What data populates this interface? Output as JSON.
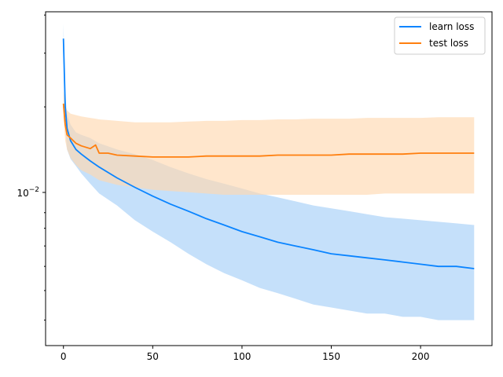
{
  "chart_data": {
    "type": "line",
    "title": "",
    "xlabel": "",
    "ylabel": "",
    "xlim": [
      -10,
      240
    ],
    "ylim": [
      0.0033,
      0.041
    ],
    "yscale": "log",
    "grid": false,
    "legend_position": "top-right",
    "x_ticks": [
      0,
      50,
      100,
      150,
      200
    ],
    "y_tick_label": "10",
    "y_tick_exponent": "−2",
    "series": [
      {
        "name": "learn loss",
        "color": "#1f77b4",
        "line_color": "#0a84ff",
        "band_color": "#a6cff7",
        "x": [
          0,
          1,
          2,
          4,
          7,
          10,
          15,
          20,
          30,
          40,
          50,
          60,
          70,
          80,
          90,
          100,
          110,
          120,
          130,
          140,
          150,
          160,
          170,
          180,
          190,
          200,
          210,
          220,
          230
        ],
        "y": [
          0.0335,
          0.02,
          0.017,
          0.0155,
          0.0145,
          0.014,
          0.0133,
          0.0127,
          0.0117,
          0.0109,
          0.0102,
          0.0096,
          0.0091,
          0.0086,
          0.0082,
          0.0078,
          0.0075,
          0.0072,
          0.007,
          0.0068,
          0.0066,
          0.0065,
          0.0064,
          0.0063,
          0.0062,
          0.0061,
          0.006,
          0.006,
          0.0059
        ],
        "upper": [
          0.0375,
          0.022,
          0.019,
          0.0175,
          0.0165,
          0.0162,
          0.0158,
          0.0152,
          0.0145,
          0.014,
          0.0134,
          0.0127,
          0.0121,
          0.0116,
          0.0112,
          0.0108,
          0.0104,
          0.0101,
          0.0098,
          0.0095,
          0.0093,
          0.0091,
          0.0089,
          0.0087,
          0.0086,
          0.0085,
          0.0084,
          0.0083,
          0.0082
        ],
        "lower": [
          0.0295,
          0.017,
          0.0145,
          0.0135,
          0.0128,
          0.0121,
          0.0112,
          0.0104,
          0.0095,
          0.0085,
          0.0078,
          0.0072,
          0.0066,
          0.0061,
          0.0057,
          0.0054,
          0.0051,
          0.0049,
          0.0047,
          0.0045,
          0.0044,
          0.0043,
          0.0042,
          0.0042,
          0.0041,
          0.0041,
          0.004,
          0.004,
          0.004
        ]
      },
      {
        "name": "test loss",
        "color": "#ff7f0e",
        "line_color": "#ff7f0e",
        "band_color": "#ffd8b0",
        "x": [
          0,
          1,
          2,
          4,
          7,
          10,
          15,
          18,
          20,
          25,
          30,
          40,
          50,
          60,
          70,
          80,
          90,
          100,
          110,
          120,
          130,
          140,
          150,
          160,
          170,
          180,
          190,
          200,
          210,
          220,
          230
        ],
        "y": [
          0.0205,
          0.0175,
          0.0162,
          0.0158,
          0.0152,
          0.0149,
          0.0146,
          0.015,
          0.0141,
          0.0141,
          0.0139,
          0.0138,
          0.0137,
          0.0137,
          0.0137,
          0.0138,
          0.0138,
          0.0138,
          0.0138,
          0.0139,
          0.0139,
          0.0139,
          0.0139,
          0.014,
          0.014,
          0.014,
          0.014,
          0.0141,
          0.0141,
          0.0141,
          0.0141
        ],
        "upper": [
          0.0225,
          0.0205,
          0.0195,
          0.019,
          0.0188,
          0.0186,
          0.0184,
          0.0183,
          0.0182,
          0.0181,
          0.018,
          0.0178,
          0.0178,
          0.0178,
          0.0179,
          0.018,
          0.018,
          0.0181,
          0.0181,
          0.0182,
          0.0182,
          0.0183,
          0.0183,
          0.0183,
          0.0184,
          0.0184,
          0.0184,
          0.0184,
          0.0185,
          0.0185,
          0.0185
        ],
        "lower": [
          0.0185,
          0.0155,
          0.0145,
          0.0136,
          0.0129,
          0.0124,
          0.012,
          0.0117,
          0.0115,
          0.0113,
          0.0111,
          0.0109,
          0.0107,
          0.0106,
          0.0105,
          0.0104,
          0.0103,
          0.0103,
          0.0103,
          0.0103,
          0.0103,
          0.0103,
          0.0103,
          0.0103,
          0.0103,
          0.0104,
          0.0104,
          0.0104,
          0.0104,
          0.0104,
          0.0104
        ]
      }
    ]
  }
}
